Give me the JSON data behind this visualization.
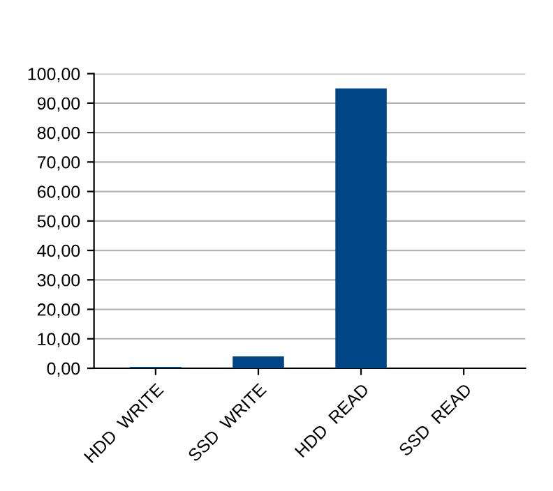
{
  "chart_data": {
    "type": "bar",
    "categories": [
      "HDD  WRITE",
      "SSD  WRITE",
      "HDD  READ",
      "SSD  READ"
    ],
    "values": [
      0.5,
      4,
      95,
      0
    ],
    "color": "#004586",
    "ylim": [
      0,
      100
    ],
    "yticks": [
      {
        "value": 0,
        "label": "0,00"
      },
      {
        "value": 10,
        "label": "10,00"
      },
      {
        "value": 20,
        "label": "20,00"
      },
      {
        "value": 30,
        "label": "30,00"
      },
      {
        "value": 40,
        "label": "40,00"
      },
      {
        "value": 50,
        "label": "50,00"
      },
      {
        "value": 60,
        "label": "60,00"
      },
      {
        "value": 70,
        "label": "70,00"
      },
      {
        "value": 80,
        "label": "80,00"
      },
      {
        "value": 90,
        "label": "90,00"
      },
      {
        "value": 100,
        "label": "100,00"
      }
    ],
    "grid": "y"
  }
}
